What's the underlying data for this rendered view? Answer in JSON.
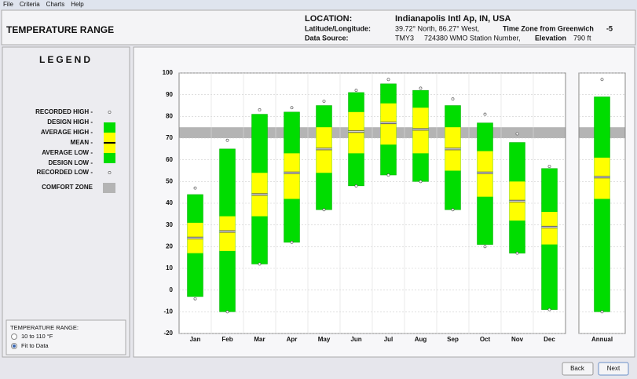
{
  "menu": [
    "File",
    "Criteria",
    "Charts",
    "Help"
  ],
  "header": {
    "title": "TEMPERATURE RANGE",
    "location_label": "LOCATION:",
    "location": "Indianapolis Intl Ap, IN, USA",
    "latlong_label": "Latitude/Longitude:",
    "latlong": "39.72° North, 86.27° West,",
    "timezone_label": "Time Zone from Greenwich",
    "timezone": "-5",
    "source_label": "Data Source:",
    "source": "TMY3",
    "station": "724380 WMO Station Number,",
    "elevation_label": "Elevation",
    "elevation": "790 ft"
  },
  "legend": {
    "title": "LEGEND",
    "comfort_label": "COMFORT ZONE"
  },
  "range_options": {
    "title": "TEMPERATURE RANGE:",
    "options": [
      "10 to 110 °F",
      "Fit to Data"
    ],
    "selected": 1
  },
  "buttons": [
    "Back",
    "Next"
  ],
  "chart_data": {
    "type": "range",
    "categories": [
      "Jan",
      "Feb",
      "Mar",
      "Apr",
      "May",
      "Jun",
      "Jul",
      "Aug",
      "Sep",
      "Oct",
      "Nov",
      "Dec",
      "Annual"
    ],
    "series": [
      {
        "name": "RECORDED HIGH -",
        "values": [
          47,
          69,
          83,
          84,
          87,
          92,
          97,
          93,
          88,
          81,
          72,
          57,
          97
        ]
      },
      {
        "name": "DESIGN HIGH -",
        "values": [
          44,
          65,
          81,
          82,
          85,
          91,
          95,
          92,
          85,
          77,
          68,
          56,
          89
        ]
      },
      {
        "name": "AVERAGE HIGH -",
        "values": [
          31,
          34,
          54,
          63,
          75,
          82,
          86,
          84,
          75,
          64,
          50,
          36,
          61
        ]
      },
      {
        "name": "MEAN -",
        "values": [
          24,
          27,
          44,
          54,
          65,
          73,
          77,
          74,
          65,
          54,
          41,
          29,
          52
        ]
      },
      {
        "name": "AVERAGE LOW -",
        "values": [
          17,
          18,
          34,
          42,
          54,
          63,
          67,
          63,
          55,
          43,
          32,
          21,
          42
        ]
      },
      {
        "name": "DESIGN LOW -",
        "values": [
          -3,
          -10,
          12,
          22,
          37,
          48,
          53,
          50,
          37,
          21,
          17,
          -9,
          -10
        ]
      },
      {
        "name": "RECORDED LOW -",
        "values": [
          -4,
          -10,
          12,
          22,
          37,
          48,
          53,
          50,
          37,
          20,
          17,
          -9,
          -10
        ]
      }
    ],
    "design_color": "#00dd00",
    "average_color": "#ffff00",
    "comfort_color": "#b4b4b4",
    "comfort_zone": [
      70,
      75
    ],
    "ylim": [
      -20,
      100
    ],
    "yticks": [
      -20,
      -10,
      0,
      10,
      20,
      30,
      40,
      50,
      60,
      70,
      80,
      90,
      100
    ],
    "grid": true
  }
}
